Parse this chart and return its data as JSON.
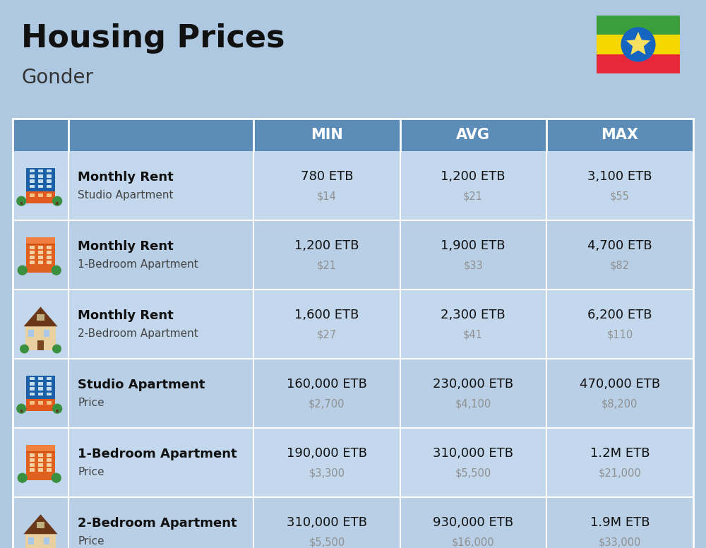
{
  "title": "Housing Prices",
  "subtitle": "Gonder",
  "background_color": "#adc8e0",
  "header_color": "#5b8db8",
  "header_text_color": "#ffffff",
  "row_bg_even": "#c3d8ed",
  "row_bg_odd": "#b8cfe6",
  "separator_color": "#ffffff",
  "title_color": "#111111",
  "subtitle_color": "#333333",
  "usd_color": "#909090",
  "col_headers": [
    "MIN",
    "AVG",
    "MAX"
  ],
  "rows": [
    {
      "icon_type": "blue_building",
      "label_bold": "Monthly Rent",
      "label_sub": "Studio Apartment",
      "min_etb": "780 ETB",
      "min_usd": "$14",
      "avg_etb": "1,200 ETB",
      "avg_usd": "$21",
      "max_etb": "3,100 ETB",
      "max_usd": "$55"
    },
    {
      "icon_type": "orange_building",
      "label_bold": "Monthly Rent",
      "label_sub": "1-Bedroom Apartment",
      "min_etb": "1,200 ETB",
      "min_usd": "$21",
      "avg_etb": "1,900 ETB",
      "avg_usd": "$33",
      "max_etb": "4,700 ETB",
      "max_usd": "$82"
    },
    {
      "icon_type": "tan_house",
      "label_bold": "Monthly Rent",
      "label_sub": "2-Bedroom Apartment",
      "min_etb": "1,600 ETB",
      "min_usd": "$27",
      "avg_etb": "2,300 ETB",
      "avg_usd": "$41",
      "max_etb": "6,200 ETB",
      "max_usd": "$110"
    },
    {
      "icon_type": "blue_building",
      "label_bold": "Studio Apartment",
      "label_sub": "Price",
      "min_etb": "160,000 ETB",
      "min_usd": "$2,700",
      "avg_etb": "230,000 ETB",
      "avg_usd": "$4,100",
      "max_etb": "470,000 ETB",
      "max_usd": "$8,200"
    },
    {
      "icon_type": "orange_building",
      "label_bold": "1-Bedroom Apartment",
      "label_sub": "Price",
      "min_etb": "190,000 ETB",
      "min_usd": "$3,300",
      "avg_etb": "310,000 ETB",
      "avg_usd": "$5,500",
      "max_etb": "1.2M ETB",
      "max_usd": "$21,000"
    },
    {
      "icon_type": "tan_house",
      "label_bold": "2-Bedroom Apartment",
      "label_sub": "Price",
      "min_etb": "310,000 ETB",
      "min_usd": "$5,500",
      "avg_etb": "930,000 ETB",
      "avg_usd": "$16,000",
      "max_etb": "1.9M ETB",
      "max_usd": "$33,000"
    }
  ]
}
